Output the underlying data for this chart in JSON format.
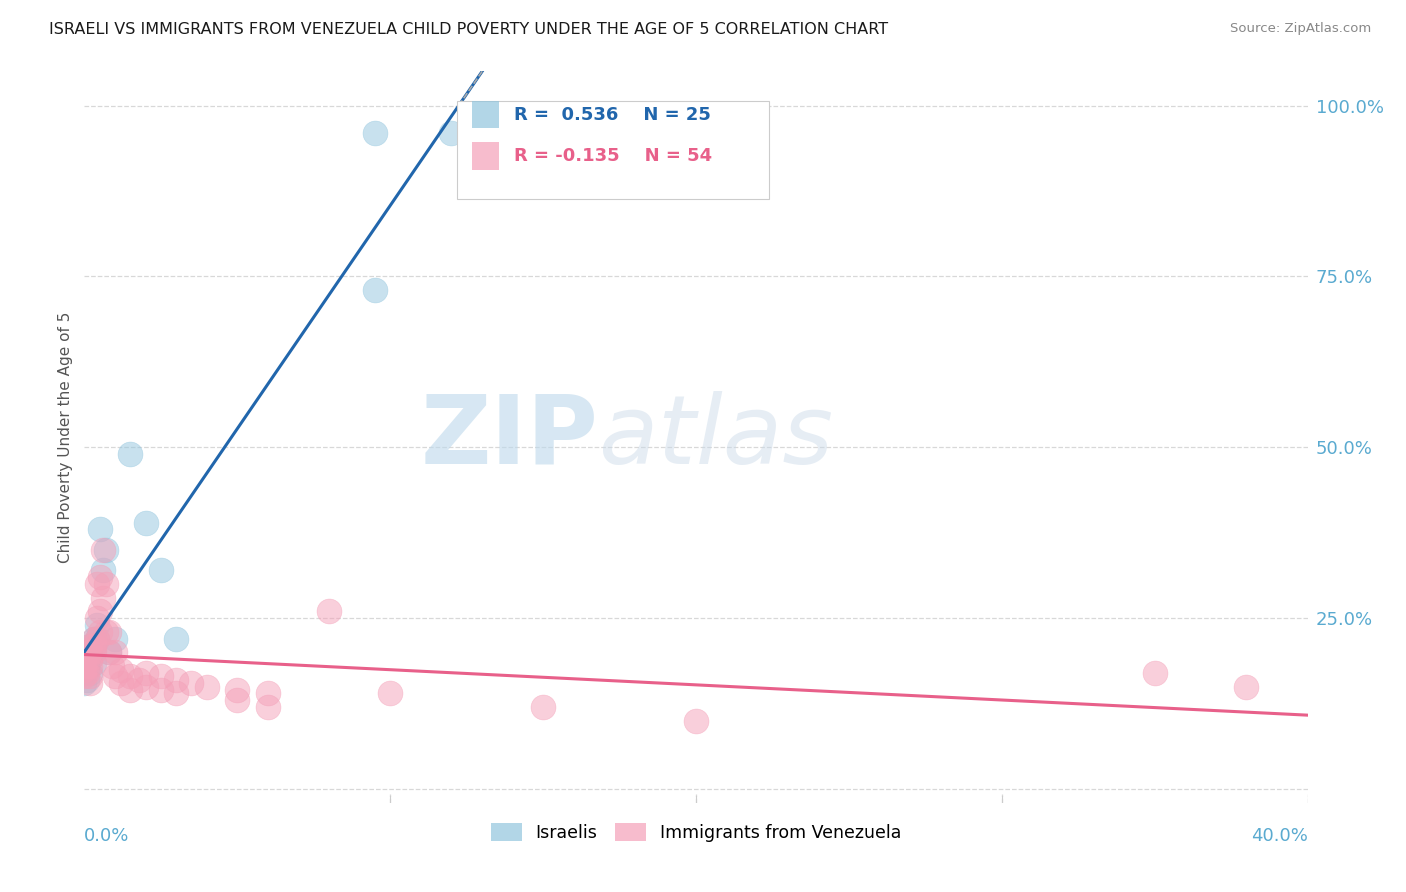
{
  "title": "ISRAELI VS IMMIGRANTS FROM VENEZUELA CHILD POVERTY UNDER THE AGE OF 5 CORRELATION CHART",
  "source": "Source: ZipAtlas.com",
  "ylabel": "Child Poverty Under the Age of 5",
  "yticks": [
    0.0,
    0.25,
    0.5,
    0.75,
    1.0
  ],
  "ytick_labels": [
    "",
    "25.0%",
    "50.0%",
    "75.0%",
    "100.0%"
  ],
  "legend_israeli_r": "R =  0.536",
  "legend_israeli_n": "N = 25",
  "legend_venezuela_r": "R = -0.135",
  "legend_venezuela_n": "N = 54",
  "legend_label_israeli": "Israelis",
  "legend_label_venezuela": "Immigrants from Venezuela",
  "watermark_zip": "ZIP",
  "watermark_atlas": "atlas",
  "israeli_color": "#92c5de",
  "venezuela_color": "#f4a0b8",
  "israeli_line_color": "#2166ac",
  "venezuela_line_color": "#e8608a",
  "background_color": "#ffffff",
  "israeli_points": [
    [
      0.0,
      0.17
    ],
    [
      0.0,
      0.155
    ],
    [
      0.001,
      0.195
    ],
    [
      0.001,
      0.175
    ],
    [
      0.001,
      0.16
    ],
    [
      0.002,
      0.21
    ],
    [
      0.002,
      0.19
    ],
    [
      0.002,
      0.17
    ],
    [
      0.003,
      0.22
    ],
    [
      0.003,
      0.205
    ],
    [
      0.003,
      0.185
    ],
    [
      0.004,
      0.24
    ],
    [
      0.004,
      0.22
    ],
    [
      0.005,
      0.38
    ],
    [
      0.006,
      0.32
    ],
    [
      0.007,
      0.35
    ],
    [
      0.008,
      0.2
    ],
    [
      0.01,
      0.22
    ],
    [
      0.015,
      0.49
    ],
    [
      0.02,
      0.39
    ],
    [
      0.025,
      0.32
    ],
    [
      0.03,
      0.22
    ],
    [
      0.095,
      0.96
    ],
    [
      0.12,
      0.96
    ],
    [
      0.095,
      0.73
    ]
  ],
  "venezuela_points": [
    [
      0.0,
      0.185
    ],
    [
      0.0,
      0.175
    ],
    [
      0.0,
      0.165
    ],
    [
      0.001,
      0.2
    ],
    [
      0.001,
      0.19
    ],
    [
      0.001,
      0.18
    ],
    [
      0.001,
      0.17
    ],
    [
      0.002,
      0.21
    ],
    [
      0.002,
      0.2
    ],
    [
      0.002,
      0.19
    ],
    [
      0.002,
      0.18
    ],
    [
      0.002,
      0.165
    ],
    [
      0.002,
      0.155
    ],
    [
      0.003,
      0.22
    ],
    [
      0.003,
      0.21
    ],
    [
      0.003,
      0.2
    ],
    [
      0.004,
      0.3
    ],
    [
      0.004,
      0.25
    ],
    [
      0.004,
      0.22
    ],
    [
      0.005,
      0.31
    ],
    [
      0.005,
      0.26
    ],
    [
      0.005,
      0.23
    ],
    [
      0.006,
      0.35
    ],
    [
      0.006,
      0.28
    ],
    [
      0.007,
      0.3
    ],
    [
      0.007,
      0.23
    ],
    [
      0.008,
      0.23
    ],
    [
      0.008,
      0.2
    ],
    [
      0.009,
      0.18
    ],
    [
      0.01,
      0.2
    ],
    [
      0.01,
      0.165
    ],
    [
      0.012,
      0.175
    ],
    [
      0.012,
      0.155
    ],
    [
      0.015,
      0.165
    ],
    [
      0.015,
      0.145
    ],
    [
      0.018,
      0.16
    ],
    [
      0.02,
      0.17
    ],
    [
      0.02,
      0.15
    ],
    [
      0.025,
      0.165
    ],
    [
      0.025,
      0.145
    ],
    [
      0.03,
      0.16
    ],
    [
      0.03,
      0.14
    ],
    [
      0.035,
      0.155
    ],
    [
      0.04,
      0.15
    ],
    [
      0.05,
      0.145
    ],
    [
      0.05,
      0.13
    ],
    [
      0.06,
      0.14
    ],
    [
      0.06,
      0.12
    ],
    [
      0.08,
      0.26
    ],
    [
      0.1,
      0.14
    ],
    [
      0.15,
      0.12
    ],
    [
      0.2,
      0.1
    ],
    [
      0.35,
      0.17
    ],
    [
      0.38,
      0.15
    ]
  ],
  "xlim": [
    0.0,
    0.4
  ],
  "ylim": [
    -0.02,
    1.05
  ],
  "xtick_positions": [
    0.1,
    0.2,
    0.3,
    0.4
  ]
}
